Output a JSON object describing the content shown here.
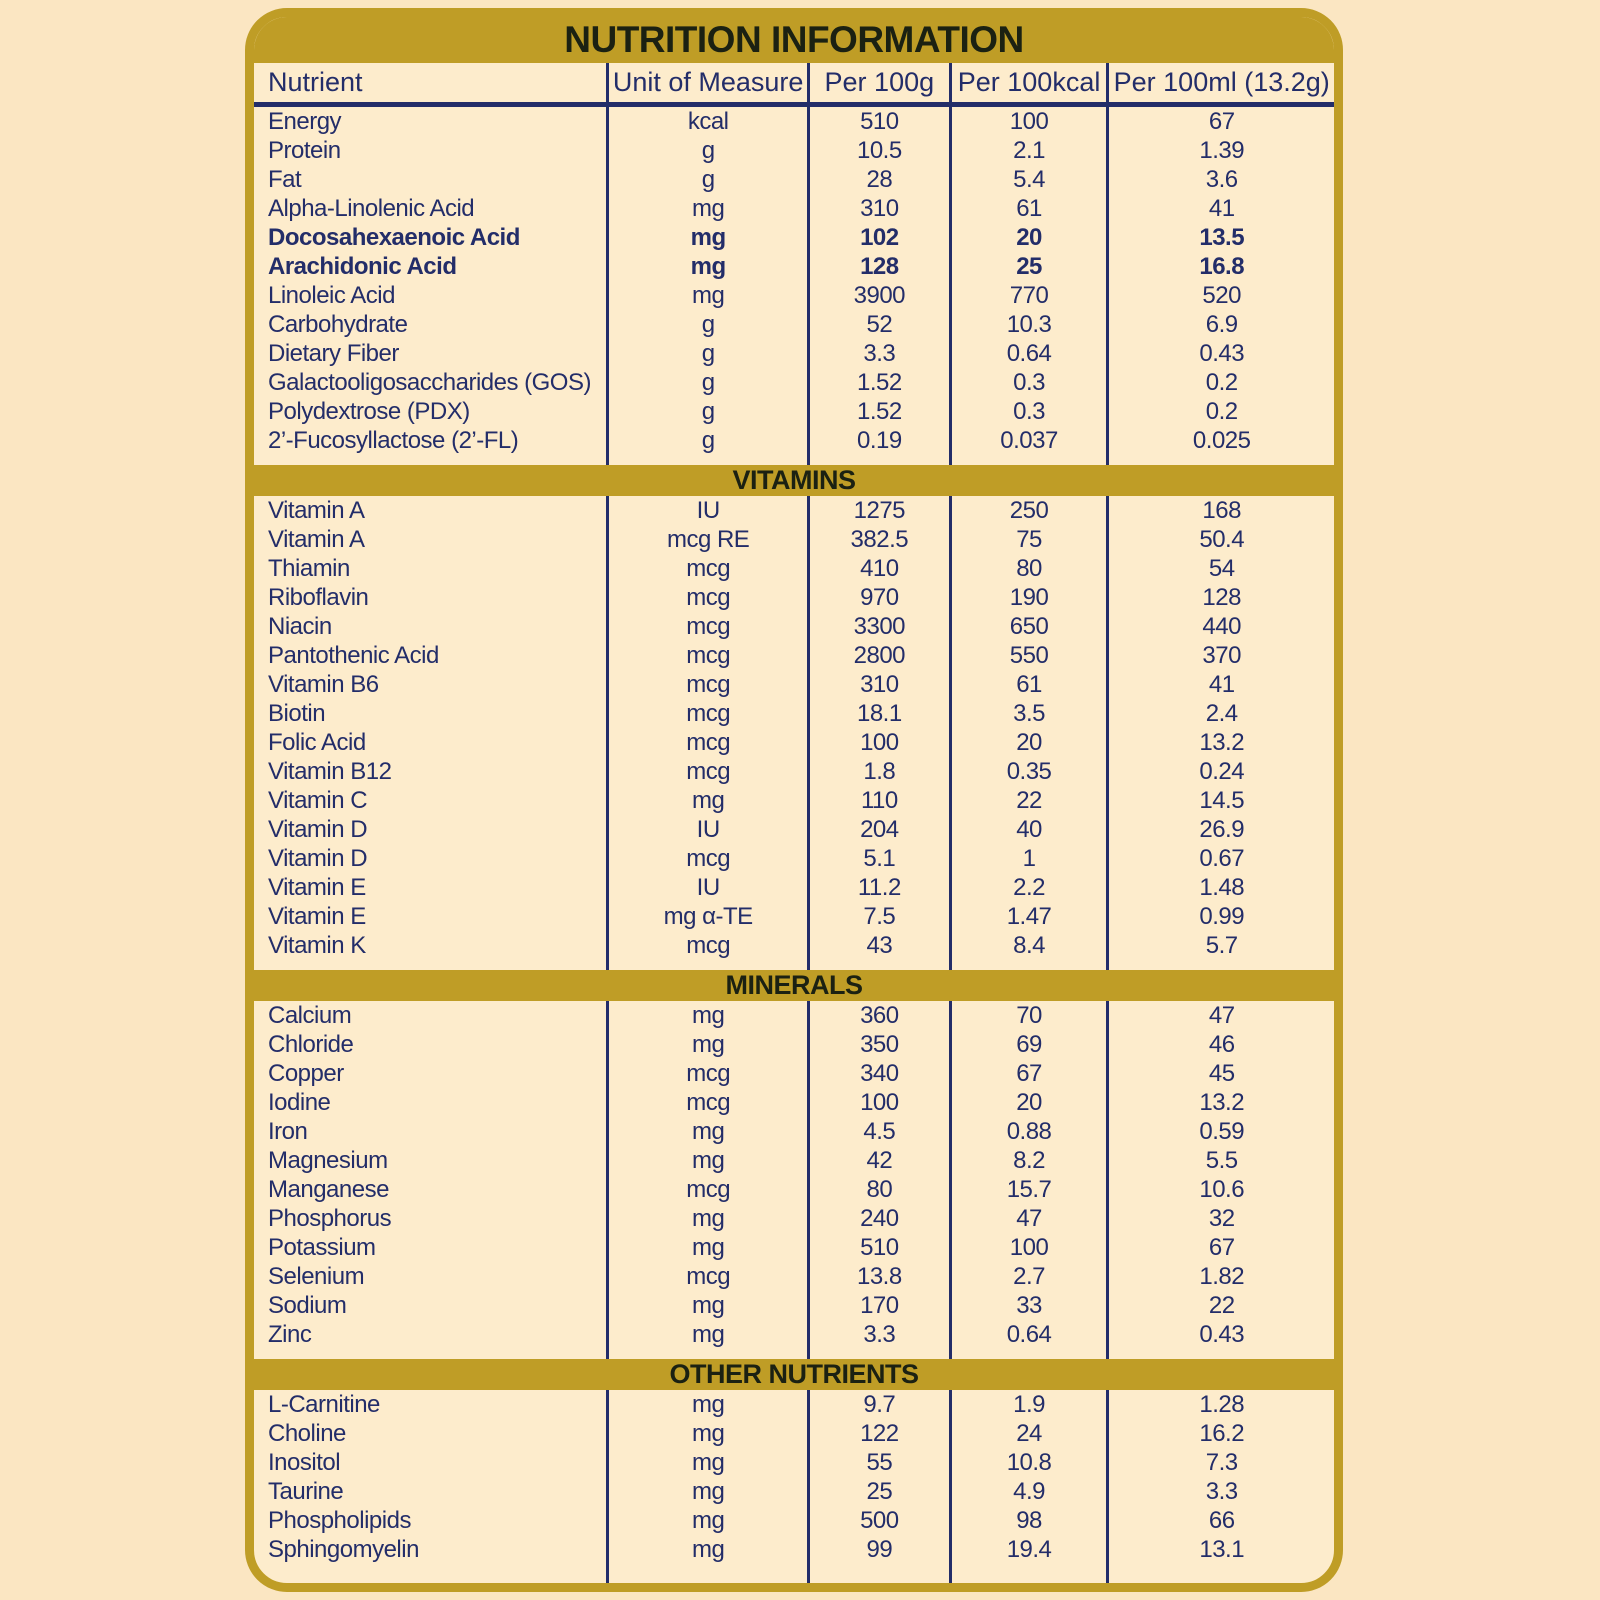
{
  "colors": {
    "gold": "#bf9d26",
    "page_background": "#fbe6c2",
    "panel_background": "#fdeccc",
    "text_navy": "#232d69",
    "text_dark": "#1b2112"
  },
  "title": "NUTRITION INFORMATION",
  "table": {
    "columns": [
      "Nutrient",
      "Unit of Measure",
      "Per 100g",
      "Per 100kcal",
      "Per 100ml (13.2g)"
    ],
    "sections": [
      {
        "title": null,
        "rows": [
          {
            "nutrient": "Energy",
            "unit": "kcal",
            "per_100g": "510",
            "per_100kcal": "100",
            "per_100ml": "67",
            "bold": false
          },
          {
            "nutrient": "Protein",
            "unit": "g",
            "per_100g": "10.5",
            "per_100kcal": "2.1",
            "per_100ml": "1.39",
            "bold": false
          },
          {
            "nutrient": "Fat",
            "unit": "g",
            "per_100g": "28",
            "per_100kcal": "5.4",
            "per_100ml": "3.6",
            "bold": false
          },
          {
            "nutrient": "Alpha-Linolenic Acid",
            "unit": "mg",
            "per_100g": "310",
            "per_100kcal": "61",
            "per_100ml": "41",
            "bold": false
          },
          {
            "nutrient": "Docosahexaenoic Acid",
            "unit": "mg",
            "per_100g": "102",
            "per_100kcal": "20",
            "per_100ml": "13.5",
            "bold": true
          },
          {
            "nutrient": "Arachidonic Acid",
            "unit": "mg",
            "per_100g": "128",
            "per_100kcal": "25",
            "per_100ml": "16.8",
            "bold": true
          },
          {
            "nutrient": "Linoleic Acid",
            "unit": "mg",
            "per_100g": "3900",
            "per_100kcal": "770",
            "per_100ml": "520",
            "bold": false
          },
          {
            "nutrient": "Carbohydrate",
            "unit": "g",
            "per_100g": "52",
            "per_100kcal": "10.3",
            "per_100ml": "6.9",
            "bold": false
          },
          {
            "nutrient": "Dietary Fiber",
            "unit": "g",
            "per_100g": "3.3",
            "per_100kcal": "0.64",
            "per_100ml": "0.43",
            "bold": false
          },
          {
            "nutrient": "Galactooligosaccharides (GOS)",
            "unit": "g",
            "per_100g": "1.52",
            "per_100kcal": "0.3",
            "per_100ml": "0.2",
            "bold": false
          },
          {
            "nutrient": "Polydextrose (PDX)",
            "unit": "g",
            "per_100g": "1.52",
            "per_100kcal": "0.3",
            "per_100ml": "0.2",
            "bold": false
          },
          {
            "nutrient": "2’-Fucosyllactose (2’-FL)",
            "unit": "g",
            "per_100g": "0.19",
            "per_100kcal": "0.037",
            "per_100ml": "0.025",
            "bold": false
          }
        ]
      },
      {
        "title": "VITAMINS",
        "rows": [
          {
            "nutrient": "Vitamin A",
            "unit": "IU",
            "per_100g": "1275",
            "per_100kcal": "250",
            "per_100ml": "168",
            "bold": false
          },
          {
            "nutrient": "Vitamin A",
            "unit": "mcg RE",
            "per_100g": "382.5",
            "per_100kcal": "75",
            "per_100ml": "50.4",
            "bold": false
          },
          {
            "nutrient": "Thiamin",
            "unit": "mcg",
            "per_100g": "410",
            "per_100kcal": "80",
            "per_100ml": "54",
            "bold": false
          },
          {
            "nutrient": "Riboflavin",
            "unit": "mcg",
            "per_100g": "970",
            "per_100kcal": "190",
            "per_100ml": "128",
            "bold": false
          },
          {
            "nutrient": "Niacin",
            "unit": "mcg",
            "per_100g": "3300",
            "per_100kcal": "650",
            "per_100ml": "440",
            "bold": false
          },
          {
            "nutrient": "Pantothenic Acid",
            "unit": "mcg",
            "per_100g": "2800",
            "per_100kcal": "550",
            "per_100ml": "370",
            "bold": false
          },
          {
            "nutrient": "Vitamin B6",
            "unit": "mcg",
            "per_100g": "310",
            "per_100kcal": "61",
            "per_100ml": "41",
            "bold": false
          },
          {
            "nutrient": "Biotin",
            "unit": "mcg",
            "per_100g": "18.1",
            "per_100kcal": "3.5",
            "per_100ml": "2.4",
            "bold": false
          },
          {
            "nutrient": "Folic Acid",
            "unit": "mcg",
            "per_100g": "100",
            "per_100kcal": "20",
            "per_100ml": "13.2",
            "bold": false
          },
          {
            "nutrient": "Vitamin B12",
            "unit": "mcg",
            "per_100g": "1.8",
            "per_100kcal": "0.35",
            "per_100ml": "0.24",
            "bold": false
          },
          {
            "nutrient": "Vitamin C",
            "unit": "mg",
            "per_100g": "110",
            "per_100kcal": "22",
            "per_100ml": "14.5",
            "bold": false
          },
          {
            "nutrient": "Vitamin D",
            "unit": "IU",
            "per_100g": "204",
            "per_100kcal": "40",
            "per_100ml": "26.9",
            "bold": false
          },
          {
            "nutrient": "Vitamin D",
            "unit": "mcg",
            "per_100g": "5.1",
            "per_100kcal": "1",
            "per_100ml": "0.67",
            "bold": false
          },
          {
            "nutrient": "Vitamin E",
            "unit": "IU",
            "per_100g": "11.2",
            "per_100kcal": "2.2",
            "per_100ml": "1.48",
            "bold": false
          },
          {
            "nutrient": "Vitamin E",
            "unit": "mg α-TE",
            "per_100g": "7.5",
            "per_100kcal": "1.47",
            "per_100ml": "0.99",
            "bold": false
          },
          {
            "nutrient": "Vitamin K",
            "unit": "mcg",
            "per_100g": "43",
            "per_100kcal": "8.4",
            "per_100ml": "5.7",
            "bold": false
          }
        ]
      },
      {
        "title": "MINERALS",
        "rows": [
          {
            "nutrient": "Calcium",
            "unit": "mg",
            "per_100g": "360",
            "per_100kcal": "70",
            "per_100ml": "47",
            "bold": false
          },
          {
            "nutrient": "Chloride",
            "unit": "mg",
            "per_100g": "350",
            "per_100kcal": "69",
            "per_100ml": "46",
            "bold": false
          },
          {
            "nutrient": "Copper",
            "unit": "mcg",
            "per_100g": "340",
            "per_100kcal": "67",
            "per_100ml": "45",
            "bold": false
          },
          {
            "nutrient": "Iodine",
            "unit": "mcg",
            "per_100g": "100",
            "per_100kcal": "20",
            "per_100ml": "13.2",
            "bold": false
          },
          {
            "nutrient": "Iron",
            "unit": "mg",
            "per_100g": "4.5",
            "per_100kcal": "0.88",
            "per_100ml": "0.59",
            "bold": false
          },
          {
            "nutrient": "Magnesium",
            "unit": "mg",
            "per_100g": "42",
            "per_100kcal": "8.2",
            "per_100ml": "5.5",
            "bold": false
          },
          {
            "nutrient": "Manganese",
            "unit": "mcg",
            "per_100g": "80",
            "per_100kcal": "15.7",
            "per_100ml": "10.6",
            "bold": false
          },
          {
            "nutrient": "Phosphorus",
            "unit": "mg",
            "per_100g": "240",
            "per_100kcal": "47",
            "per_100ml": "32",
            "bold": false
          },
          {
            "nutrient": "Potassium",
            "unit": "mg",
            "per_100g": "510",
            "per_100kcal": "100",
            "per_100ml": "67",
            "bold": false
          },
          {
            "nutrient": "Selenium",
            "unit": "mcg",
            "per_100g": "13.8",
            "per_100kcal": "2.7",
            "per_100ml": "1.82",
            "bold": false
          },
          {
            "nutrient": "Sodium",
            "unit": "mg",
            "per_100g": "170",
            "per_100kcal": "33",
            "per_100ml": "22",
            "bold": false
          },
          {
            "nutrient": "Zinc",
            "unit": "mg",
            "per_100g": "3.3",
            "per_100kcal": "0.64",
            "per_100ml": "0.43",
            "bold": false
          }
        ]
      },
      {
        "title": "OTHER NUTRIENTS",
        "rows": [
          {
            "nutrient": "L-Carnitine",
            "unit": "mg",
            "per_100g": "9.7",
            "per_100kcal": "1.9",
            "per_100ml": "1.28",
            "bold": false
          },
          {
            "nutrient": "Choline",
            "unit": "mg",
            "per_100g": "122",
            "per_100kcal": "24",
            "per_100ml": "16.2",
            "bold": false
          },
          {
            "nutrient": "Inositol",
            "unit": "mg",
            "per_100g": "55",
            "per_100kcal": "10.8",
            "per_100ml": "7.3",
            "bold": false
          },
          {
            "nutrient": "Taurine",
            "unit": "mg",
            "per_100g": "25",
            "per_100kcal": "4.9",
            "per_100ml": "3.3",
            "bold": false
          },
          {
            "nutrient": "Phospholipids",
            "unit": "mg",
            "per_100g": "500",
            "per_100kcal": "98",
            "per_100ml": "66",
            "bold": false
          },
          {
            "nutrient": "Sphingomyelin",
            "unit": "mg",
            "per_100g": "99",
            "per_100kcal": "19.4",
            "per_100ml": "13.1",
            "bold": false
          }
        ]
      }
    ]
  }
}
